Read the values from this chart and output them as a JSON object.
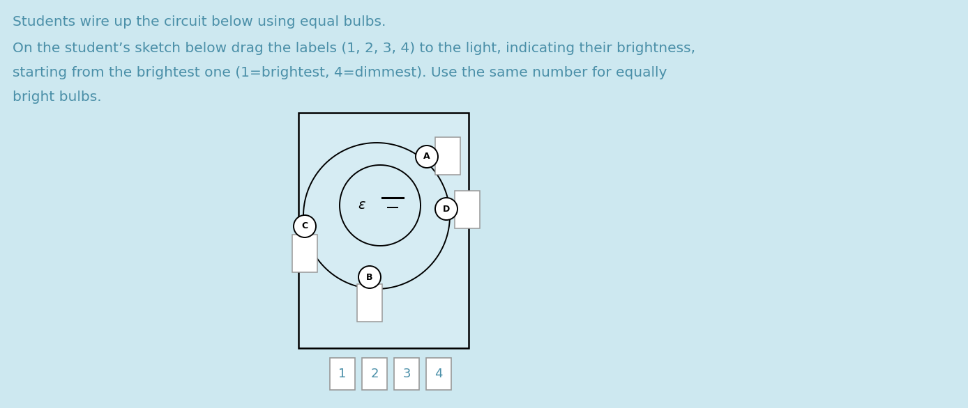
{
  "background_color": "#cde8f0",
  "text_color": "#4a8fa8",
  "title_line1": "Students wire up the circuit below using equal bulbs.",
  "title_line2": "On the student’s sketch below drag the labels (1, 2, 3, 4) to the light, indicating their brightness,",
  "title_line3": "starting from the brightest one (1=brightest, 4=dimmest). Use the same number for equally",
  "title_line4": "bright bulbs.",
  "font_size_title": 14.5,
  "labels_1234": [
    "1",
    "2",
    "3",
    "4"
  ],
  "epsilon_label": "ε"
}
